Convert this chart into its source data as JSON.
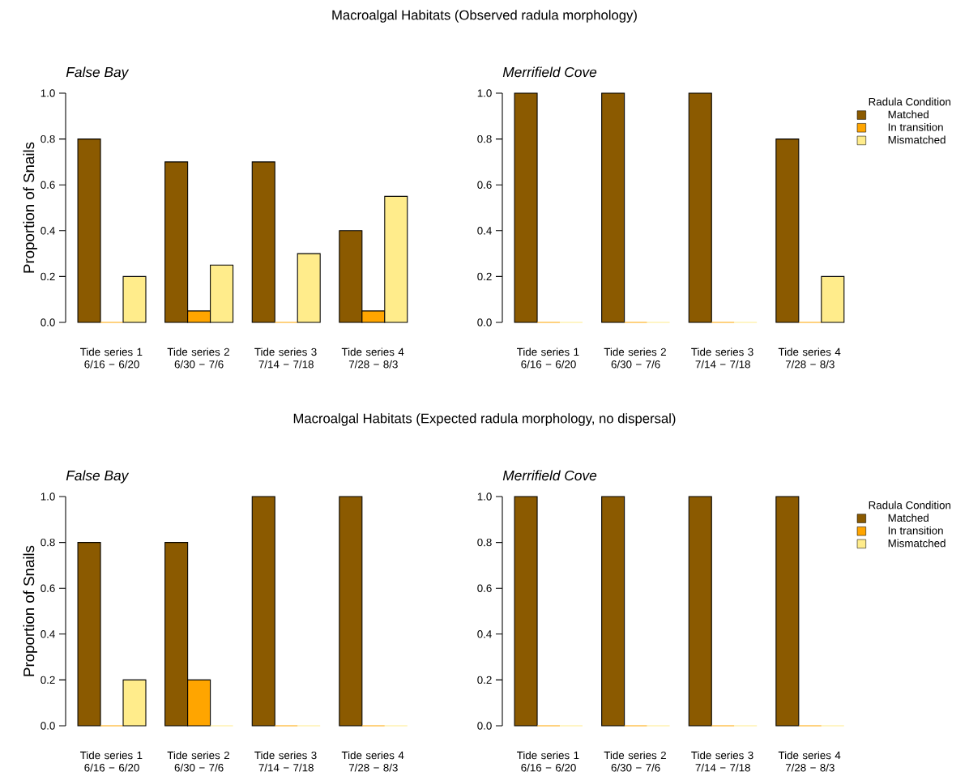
{
  "chart_data": [
    {
      "type": "bar",
      "title": "Macroalgal Habitats (Observed radula morphology)",
      "subtitle": "False Bay",
      "ylabel": "Proportion of Snails",
      "categories": [
        "Tide series 1 6/16 − 6/20",
        "Tide series 2 6/30 − 7/6",
        "Tide series 3 7/14 − 7/18",
        "Tide series 4 7/28 − 8/3"
      ],
      "series": [
        {
          "color": "#8b5a00",
          "values": [
            0.8,
            0.7,
            0.7,
            0.4
          ]
        },
        {
          "color": "#ffa500",
          "values": [
            0,
            0.05,
            0,
            0.05
          ]
        },
        {
          "color": "#ffec8b",
          "values": [
            0.2,
            0.25,
            0.3,
            0.55
          ]
        }
      ],
      "ylim": [
        0,
        1
      ],
      "yticks": [
        {
          "value": 0,
          "label": "0.0"
        },
        {
          "value": 0.2,
          "label": "0.2"
        },
        {
          "value": 0.4,
          "label": "0.4"
        },
        {
          "value": 0.6,
          "label": "0.6"
        },
        {
          "value": 0.8,
          "label": "0.8"
        },
        {
          "value": 1,
          "label": "1.0"
        }
      ]
    },
    {
      "type": "bar",
      "subtitle": "Merrifield Cove",
      "legend_title": "Radula Condition",
      "legend": "right",
      "categories": [
        "Tide series 1 6/16 − 6/20",
        "Tide series 2 6/30 − 7/6",
        "Tide series 3 7/14 − 7/18",
        "Tide series 4 7/28 − 8/3"
      ],
      "series": [
        {
          "name": "Matched",
          "color": "#8b5a00",
          "values": [
            1,
            1,
            1,
            0.8
          ]
        },
        {
          "name": "In transition",
          "color": "#ffa500",
          "values": [
            0,
            0,
            0,
            0
          ]
        },
        {
          "name": "Mismatched",
          "color": "#ffec8b",
          "values": [
            0,
            0,
            0,
            0.2
          ]
        }
      ],
      "ylim": [
        0,
        1
      ],
      "yticks": [
        {
          "value": 0,
          "label": "0.0"
        },
        {
          "value": 0.2,
          "label": "0.2"
        },
        {
          "value": 0.4,
          "label": "0.4"
        },
        {
          "value": 0.6,
          "label": "0.6"
        },
        {
          "value": 0.8,
          "label": "0.8"
        },
        {
          "value": 1,
          "label": "1.0"
        }
      ]
    },
    {
      "type": "bar",
      "title": "Macroalgal Habitats (Expected radula morphology, no dispersal)",
      "subtitle": "False Bay",
      "ylabel": "Proportion of Snails",
      "categories": [
        "Tide series 1 6/16 − 6/20",
        "Tide series 2 6/30 − 7/6",
        "Tide series 3 7/14 − 7/18",
        "Tide series 4 7/28 − 8/3"
      ],
      "series": [
        {
          "color": "#8b5a00",
          "values": [
            0.8,
            0.8,
            1,
            1
          ]
        },
        {
          "color": "#ffa500",
          "values": [
            0,
            0.2,
            0,
            0
          ]
        },
        {
          "color": "#ffec8b",
          "values": [
            0.2,
            0,
            0,
            0
          ]
        }
      ],
      "ylim": [
        0,
        1
      ],
      "yticks": [
        {
          "value": 0,
          "label": "0.0"
        },
        {
          "value": 0.2,
          "label": "0.2"
        },
        {
          "value": 0.4,
          "label": "0.4"
        },
        {
          "value": 0.6,
          "label": "0.6"
        },
        {
          "value": 0.8,
          "label": "0.8"
        },
        {
          "value": 1,
          "label": "1.0"
        }
      ]
    },
    {
      "type": "bar",
      "subtitle": "Merrifield Cove",
      "legend_title": "Radula Condition",
      "legend": "right",
      "categories": [
        "Tide series 1 6/16 − 6/20",
        "Tide series 2 6/30 − 7/6",
        "Tide series 3 7/14 − 7/18",
        "Tide series 4 7/28 − 8/3"
      ],
      "series": [
        {
          "name": "Matched",
          "color": "#8b5a00",
          "values": [
            1,
            1,
            1,
            1
          ]
        },
        {
          "name": "In transition",
          "color": "#ffa500",
          "values": [
            0,
            0,
            0,
            0
          ]
        },
        {
          "name": "Mismatched",
          "color": "#ffec8b",
          "values": [
            0,
            0,
            0,
            0
          ]
        }
      ],
      "ylim": [
        0,
        1
      ],
      "yticks": [
        {
          "value": 0,
          "label": "0.0"
        },
        {
          "value": 0.2,
          "label": "0.2"
        },
        {
          "value": 0.4,
          "label": "0.4"
        },
        {
          "value": 0.6,
          "label": "0.6"
        },
        {
          "value": 0.8,
          "label": "0.8"
        },
        {
          "value": 1,
          "label": "1.0"
        }
      ]
    }
  ]
}
